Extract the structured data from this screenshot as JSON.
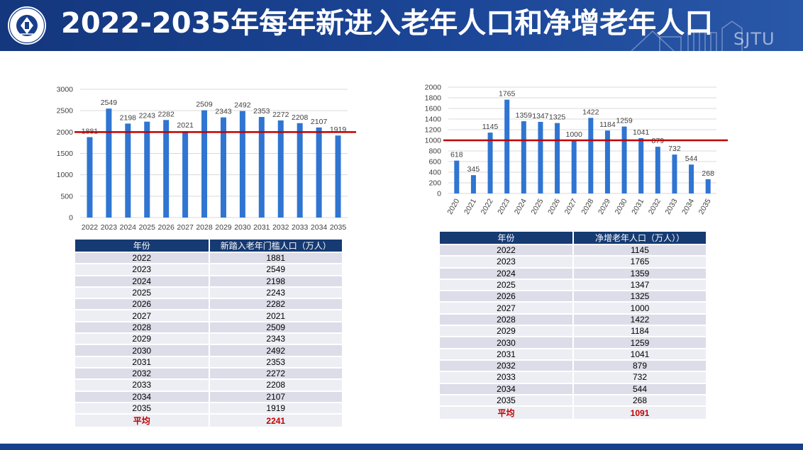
{
  "header": {
    "title": "2022-2035年每年新进入老年人口和净增老年人口",
    "watermark": "SJTU"
  },
  "colors": {
    "header_bg": "#173f8c",
    "bar": "#2f75d1",
    "threshold_line": "#c00000",
    "table_header": "#163a72",
    "avg_text": "#c00000"
  },
  "chart_data": [
    {
      "type": "bar",
      "categories": [
        "2022",
        "2023",
        "2024",
        "2025",
        "2026",
        "2027",
        "2028",
        "2029",
        "2030",
        "2031",
        "2032",
        "2033",
        "2034",
        "2035"
      ],
      "values": [
        1881,
        2549,
        2198,
        2243,
        2282,
        2021,
        2509,
        2343,
        2492,
        2353,
        2272,
        2208,
        2107,
        1919
      ],
      "yticks": [
        0,
        500,
        1000,
        1500,
        2000,
        2500,
        3000
      ],
      "ylim": [
        0,
        3000
      ],
      "reference_line": 2000,
      "grid": true
    },
    {
      "type": "bar",
      "categories": [
        "2020",
        "2021",
        "2022",
        "2023",
        "2024",
        "2025",
        "2026",
        "2027",
        "2028",
        "2029",
        "2030",
        "2031",
        "2032",
        "2033",
        "2034",
        "2035"
      ],
      "values": [
        618,
        345,
        1145,
        1765,
        1359,
        1347,
        1325,
        1000,
        1422,
        1184,
        1259,
        1041,
        879,
        732,
        544,
        268
      ],
      "yticks": [
        0,
        200,
        400,
        600,
        800,
        1000,
        1200,
        1400,
        1600,
        1800,
        2000
      ],
      "ylim": [
        0,
        2000
      ],
      "reference_line": 1000,
      "grid": true
    }
  ],
  "table_left": {
    "headers": [
      "年份",
      "新踏入老年门槛人口（万人）"
    ],
    "rows": [
      [
        "2022",
        "1881"
      ],
      [
        "2023",
        "2549"
      ],
      [
        "2024",
        "2198"
      ],
      [
        "2025",
        "2243"
      ],
      [
        "2026",
        "2282"
      ],
      [
        "2027",
        "2021"
      ],
      [
        "2028",
        "2509"
      ],
      [
        "2029",
        "2343"
      ],
      [
        "2030",
        "2492"
      ],
      [
        "2031",
        "2353"
      ],
      [
        "2032",
        "2272"
      ],
      [
        "2033",
        "2208"
      ],
      [
        "2034",
        "2107"
      ],
      [
        "2035",
        "1919"
      ]
    ],
    "avg_label": "平均",
    "avg_value": "2241"
  },
  "table_right": {
    "headers": [
      "年份",
      "净增老年人口（万人））"
    ],
    "rows": [
      [
        "2022",
        "1145"
      ],
      [
        "2023",
        "1765"
      ],
      [
        "2024",
        "1359"
      ],
      [
        "2025",
        "1347"
      ],
      [
        "2026",
        "1325"
      ],
      [
        "2027",
        "1000"
      ],
      [
        "2028",
        "1422"
      ],
      [
        "2029",
        "1184"
      ],
      [
        "2030",
        "1259"
      ],
      [
        "2031",
        "1041"
      ],
      [
        "2032",
        "879"
      ],
      [
        "2033",
        "732"
      ],
      [
        "2034",
        "544"
      ],
      [
        "2035",
        "268"
      ]
    ],
    "avg_label": "平均",
    "avg_value": "1091"
  }
}
